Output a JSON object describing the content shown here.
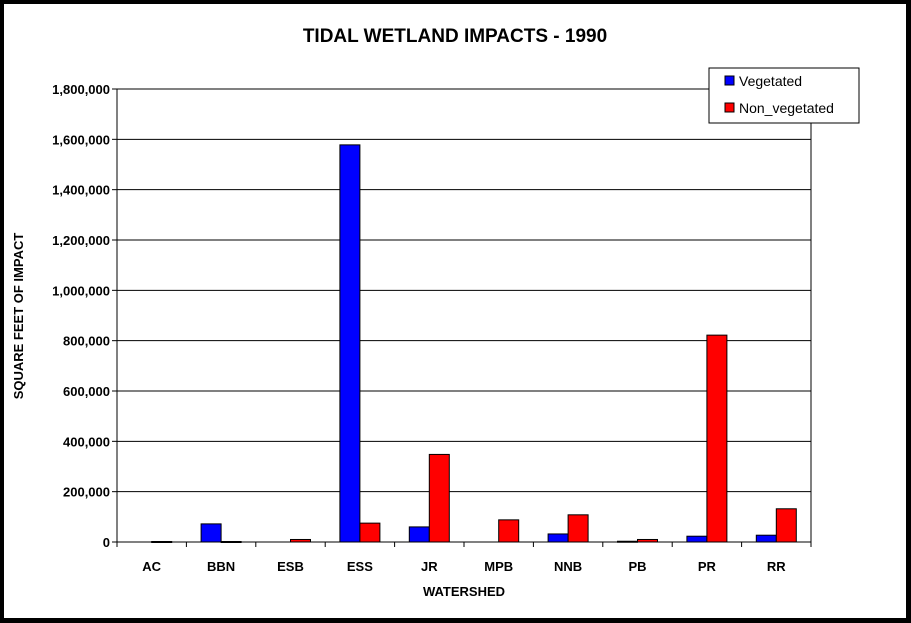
{
  "chart_data": {
    "type": "bar",
    "title": "TIDAL WETLAND IMPACTS - 1990",
    "xlabel": "WATERSHED",
    "ylabel": "SQUARE FEET OF IMPACT",
    "ylim": [
      0,
      1800000
    ],
    "ytick_step": 200000,
    "categories": [
      "AC",
      "BBN",
      "ESB",
      "ESS",
      "JR",
      "MPB",
      "NNB",
      "PB",
      "PR",
      "RR"
    ],
    "series": [
      {
        "name": "Vegetated",
        "color": "#0000ff",
        "values": [
          0,
          72000,
          0,
          1578000,
          60000,
          0,
          32000,
          3000,
          23000,
          27000
        ]
      },
      {
        "name": "Non_vegetated",
        "color": "#ff0000",
        "values": [
          2000,
          2000,
          10000,
          75000,
          348000,
          88000,
          108000,
          10000,
          822000,
          132000
        ]
      }
    ],
    "legend_position": "top-right",
    "grid": true
  }
}
